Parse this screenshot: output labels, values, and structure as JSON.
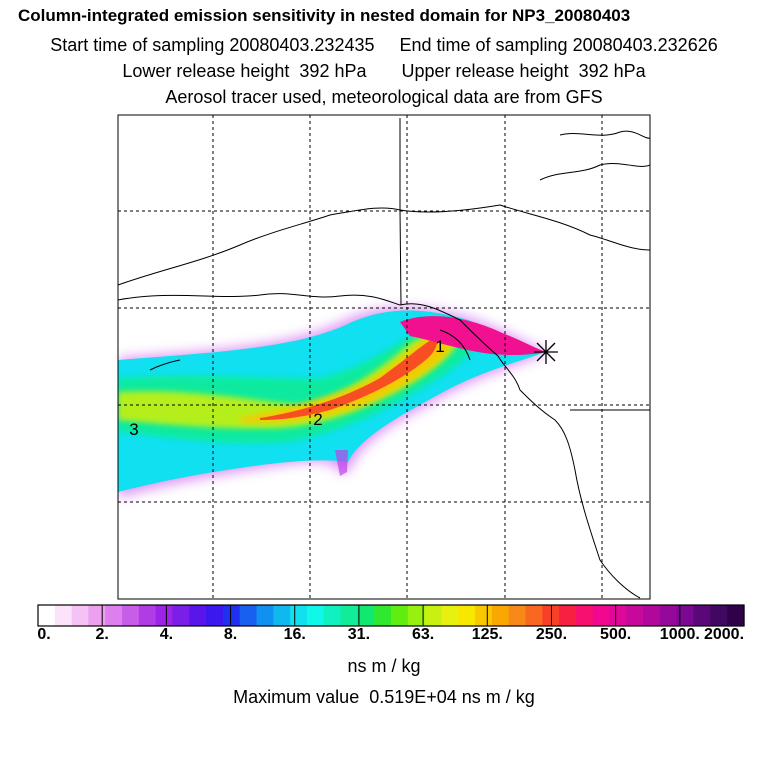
{
  "title": "Column-integrated emission sensitivity in nested domain for NP3_20080403",
  "line_sampling": "Start time of sampling 20080403.232435     End time of sampling 20080403.232626",
  "line_heights": "Lower release height  392 hPa       Upper release height  392 hPa",
  "line_tracer": "Aerosol tracer used, meteorological data are from GFS",
  "map": {
    "markers": [
      {
        "label": "1"
      },
      {
        "label": "2"
      },
      {
        "label": "3"
      }
    ],
    "release_point_icon": "asterisk-star-icon"
  },
  "colorbar": {
    "tick_labels": [
      "0.",
      "2.",
      "4.",
      "8.",
      "16.",
      "31.",
      "63.",
      "125.",
      "250.",
      "500.",
      "1000.",
      "2000."
    ],
    "colors": [
      "#ffffff",
      "#fbe4fb",
      "#f4c2f4",
      "#eba0f0",
      "#dd80ee",
      "#c85ee8",
      "#b03ce6",
      "#9b24e8",
      "#7b1ee8",
      "#5a16ea",
      "#3a18ee",
      "#2030f2",
      "#1860f0",
      "#1090f0",
      "#10b8f0",
      "#10e0f0",
      "#10f8e8",
      "#10f0c0",
      "#10ec98",
      "#10e870",
      "#30e830",
      "#60ee10",
      "#98f010",
      "#c8f010",
      "#e8f010",
      "#f8e800",
      "#f8c800",
      "#f8a800",
      "#f88818",
      "#f86820",
      "#f84028",
      "#f82040",
      "#f81070",
      "#f00890",
      "#e00898",
      "#c8089a",
      "#b0089a",
      "#96089a",
      "#7a0890",
      "#5a0878",
      "#400860",
      "#300048"
    ],
    "units": "ns m / kg"
  },
  "max_value_text": "Maximum value  0.519E+04 ns m / kg"
}
